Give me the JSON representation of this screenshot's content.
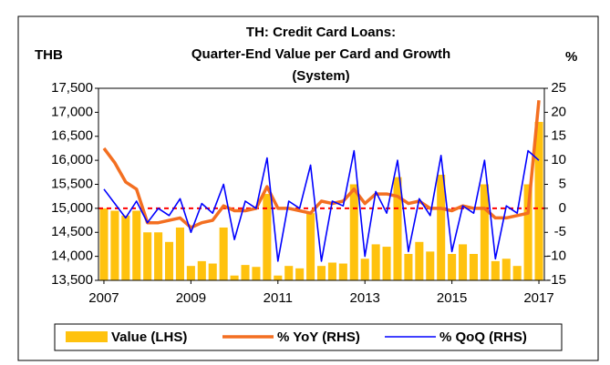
{
  "chart_data": {
    "type": "bar",
    "title": [
      "TH: Credit Card Loans:",
      "Quarter-End Value per Card and Growth",
      "(System)"
    ],
    "y_axis_label": "THB",
    "y2_axis_label": "%",
    "categories": [
      "2007",
      null,
      null,
      null,
      null,
      null,
      null,
      null,
      "2009",
      null,
      null,
      null,
      null,
      null,
      null,
      null,
      "2011",
      null,
      null,
      null,
      null,
      null,
      null,
      null,
      "2013",
      null,
      null,
      null,
      null,
      null,
      null,
      null,
      "2015",
      null,
      null,
      null,
      null,
      null,
      null,
      null,
      "2017"
    ],
    "series": [
      {
        "name": "Value (LHS)",
        "type": "bar",
        "axis": "y",
        "color": "#ffc20e",
        "values": [
          15000,
          14950,
          14850,
          14950,
          14500,
          14500,
          14300,
          14600,
          13800,
          13900,
          13850,
          14600,
          13600,
          13820,
          13780,
          15300,
          13600,
          13800,
          13750,
          14900,
          13800,
          13870,
          13850,
          15500,
          13950,
          14250,
          14200,
          15650,
          14050,
          14300,
          14100,
          15700,
          14050,
          14250,
          14050,
          15500,
          13900,
          13950,
          13800,
          15500,
          16800
        ]
      },
      {
        "name": "% YoY (RHS)",
        "type": "line",
        "axis": "y2",
        "color": "#f36f21",
        "values": [
          12.5,
          9.5,
          5.5,
          4,
          -3,
          -3,
          -2.5,
          -2,
          -4,
          -3,
          -2.5,
          0.5,
          -0.5,
          -0.5,
          0,
          4.5,
          0,
          0,
          -0.5,
          -1,
          1.5,
          1,
          1.5,
          4,
          1,
          3,
          3,
          2.5,
          1,
          1.5,
          0,
          0,
          -0.5,
          0.5,
          0,
          0,
          -2,
          -2,
          -1.5,
          -1,
          22.5
        ]
      },
      {
        "name": "% QoQ (RHS)",
        "type": "line",
        "axis": "y2",
        "color": "#0000ff",
        "values": [
          4,
          1,
          -2,
          1.5,
          -3,
          0,
          -1.5,
          2,
          -5,
          1,
          -1,
          5,
          -6.5,
          1.5,
          0,
          10.5,
          -11,
          1.5,
          0,
          9,
          -11,
          1.5,
          0.5,
          12,
          -10,
          3.5,
          -1,
          10,
          -9,
          2,
          -1.5,
          11,
          -9,
          0.5,
          -1,
          10,
          -10.5,
          0.5,
          -1,
          12,
          10
        ]
      }
    ],
    "ylim": [
      13500,
      17500
    ],
    "yticks": [
      {
        "value": 13500,
        "label": "13,500"
      },
      {
        "value": 14000,
        "label": "14,000"
      },
      {
        "value": 14500,
        "label": "14,500"
      },
      {
        "value": 15000,
        "label": "15,000"
      },
      {
        "value": 15500,
        "label": "15,500"
      },
      {
        "value": 16000,
        "label": "16,000"
      },
      {
        "value": 16500,
        "label": "16,500"
      },
      {
        "value": 17000,
        "label": "17,000"
      },
      {
        "value": 17500,
        "label": "17,500"
      }
    ],
    "y2lim": [
      -15,
      25
    ],
    "y2ticks": [
      -15,
      -10,
      -5,
      0,
      5,
      10,
      15,
      20,
      25
    ],
    "reference_line": {
      "axis": "y2",
      "value": 0,
      "color": "#ff0000"
    },
    "legend": "bottom"
  }
}
